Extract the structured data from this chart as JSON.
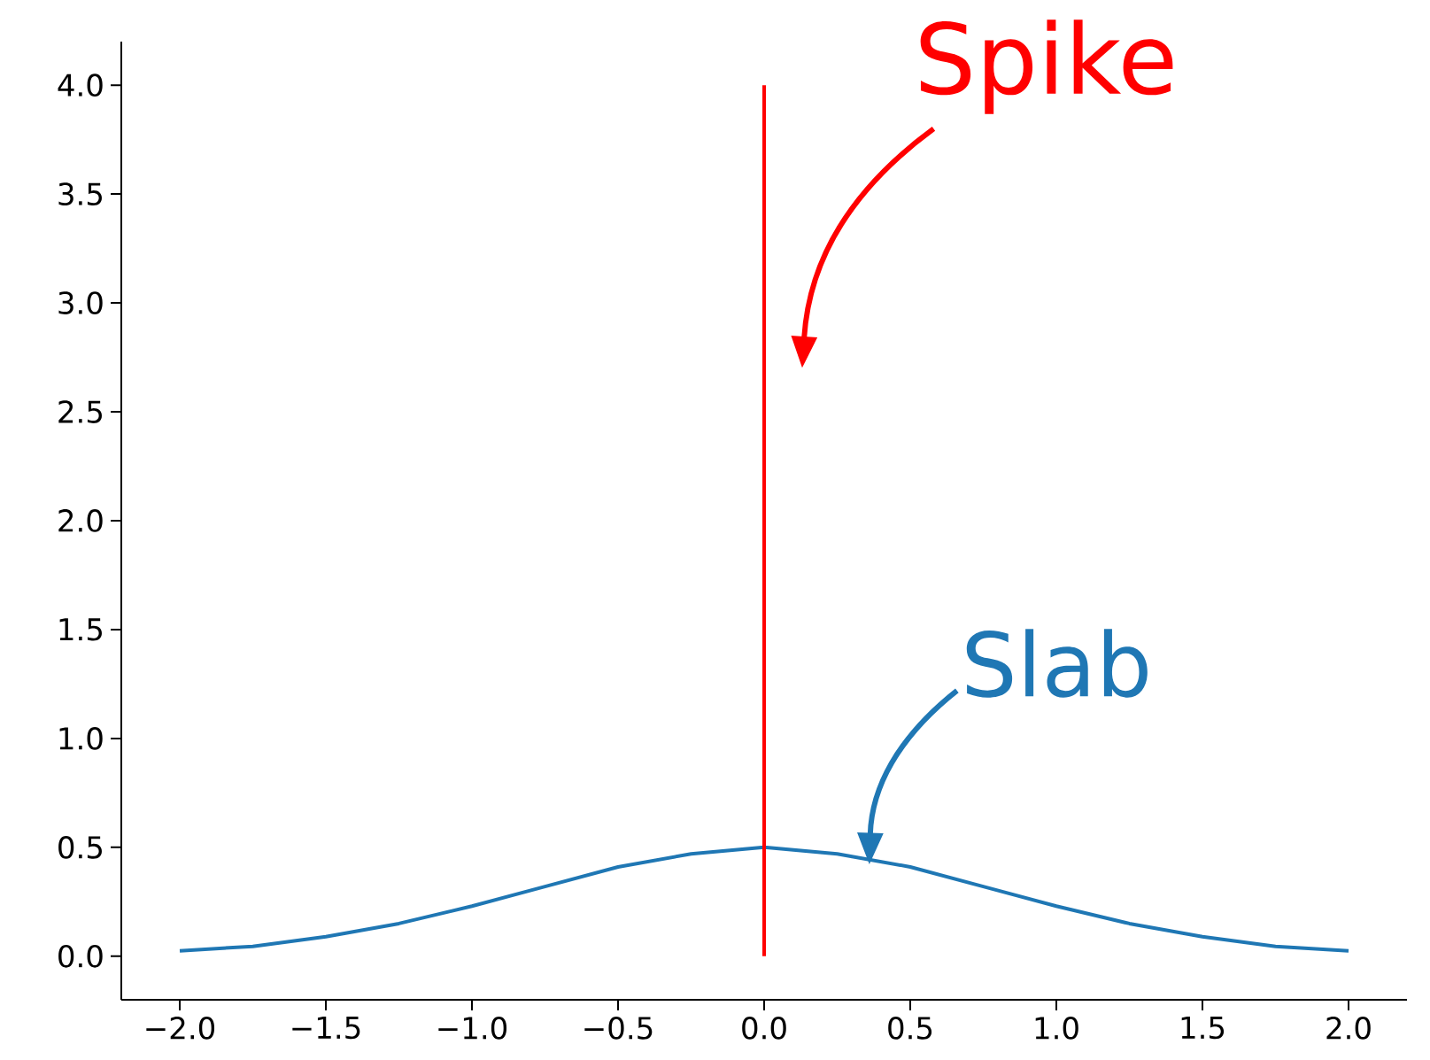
{
  "chart_data": {
    "type": "line",
    "xlim": [
      -2.2,
      2.2
    ],
    "ylim": [
      -0.2,
      4.2
    ],
    "xticks": [
      {
        "value": -2,
        "label": "−2.0"
      },
      {
        "value": -1.5,
        "label": "−1.5"
      },
      {
        "value": -1,
        "label": "−1.0"
      },
      {
        "value": -0.5,
        "label": "−0.5"
      },
      {
        "value": 0,
        "label": "0.0"
      },
      {
        "value": 0.5,
        "label": "0.5"
      },
      {
        "value": 1,
        "label": "1.0"
      },
      {
        "value": 1.5,
        "label": "1.5"
      },
      {
        "value": 2,
        "label": "2.0"
      }
    ],
    "yticks": [
      {
        "value": 0,
        "label": "0.0"
      },
      {
        "value": 0.5,
        "label": "0.5"
      },
      {
        "value": 1,
        "label": "1.0"
      },
      {
        "value": 1.5,
        "label": "1.5"
      },
      {
        "value": 2,
        "label": "2.0"
      },
      {
        "value": 2.5,
        "label": "2.5"
      },
      {
        "value": 3,
        "label": "3.0"
      },
      {
        "value": 3.5,
        "label": "3.5"
      },
      {
        "value": 4,
        "label": "4.0"
      }
    ],
    "series": [
      {
        "color": "#1f77b4",
        "x": [
          -2,
          -1.75,
          -1.5,
          -1.25,
          -1,
          -0.75,
          -0.5,
          -0.25,
          0,
          0.25,
          0.5,
          0.75,
          1,
          1.25,
          1.5,
          1.75,
          2
        ],
        "values": [
          0.025,
          0.045,
          0.09,
          0.15,
          0.23,
          0.32,
          0.41,
          0.47,
          0.5,
          0.47,
          0.41,
          0.32,
          0.23,
          0.15,
          0.09,
          0.045,
          0.025
        ]
      },
      {
        "color": "#ff0000",
        "x": [
          0,
          0
        ],
        "values": [
          0,
          4
        ]
      }
    ],
    "annotations": [
      {
        "text": "Slab",
        "x": 0.36,
        "y": 0.42
      },
      "Spike"
    ]
  }
}
